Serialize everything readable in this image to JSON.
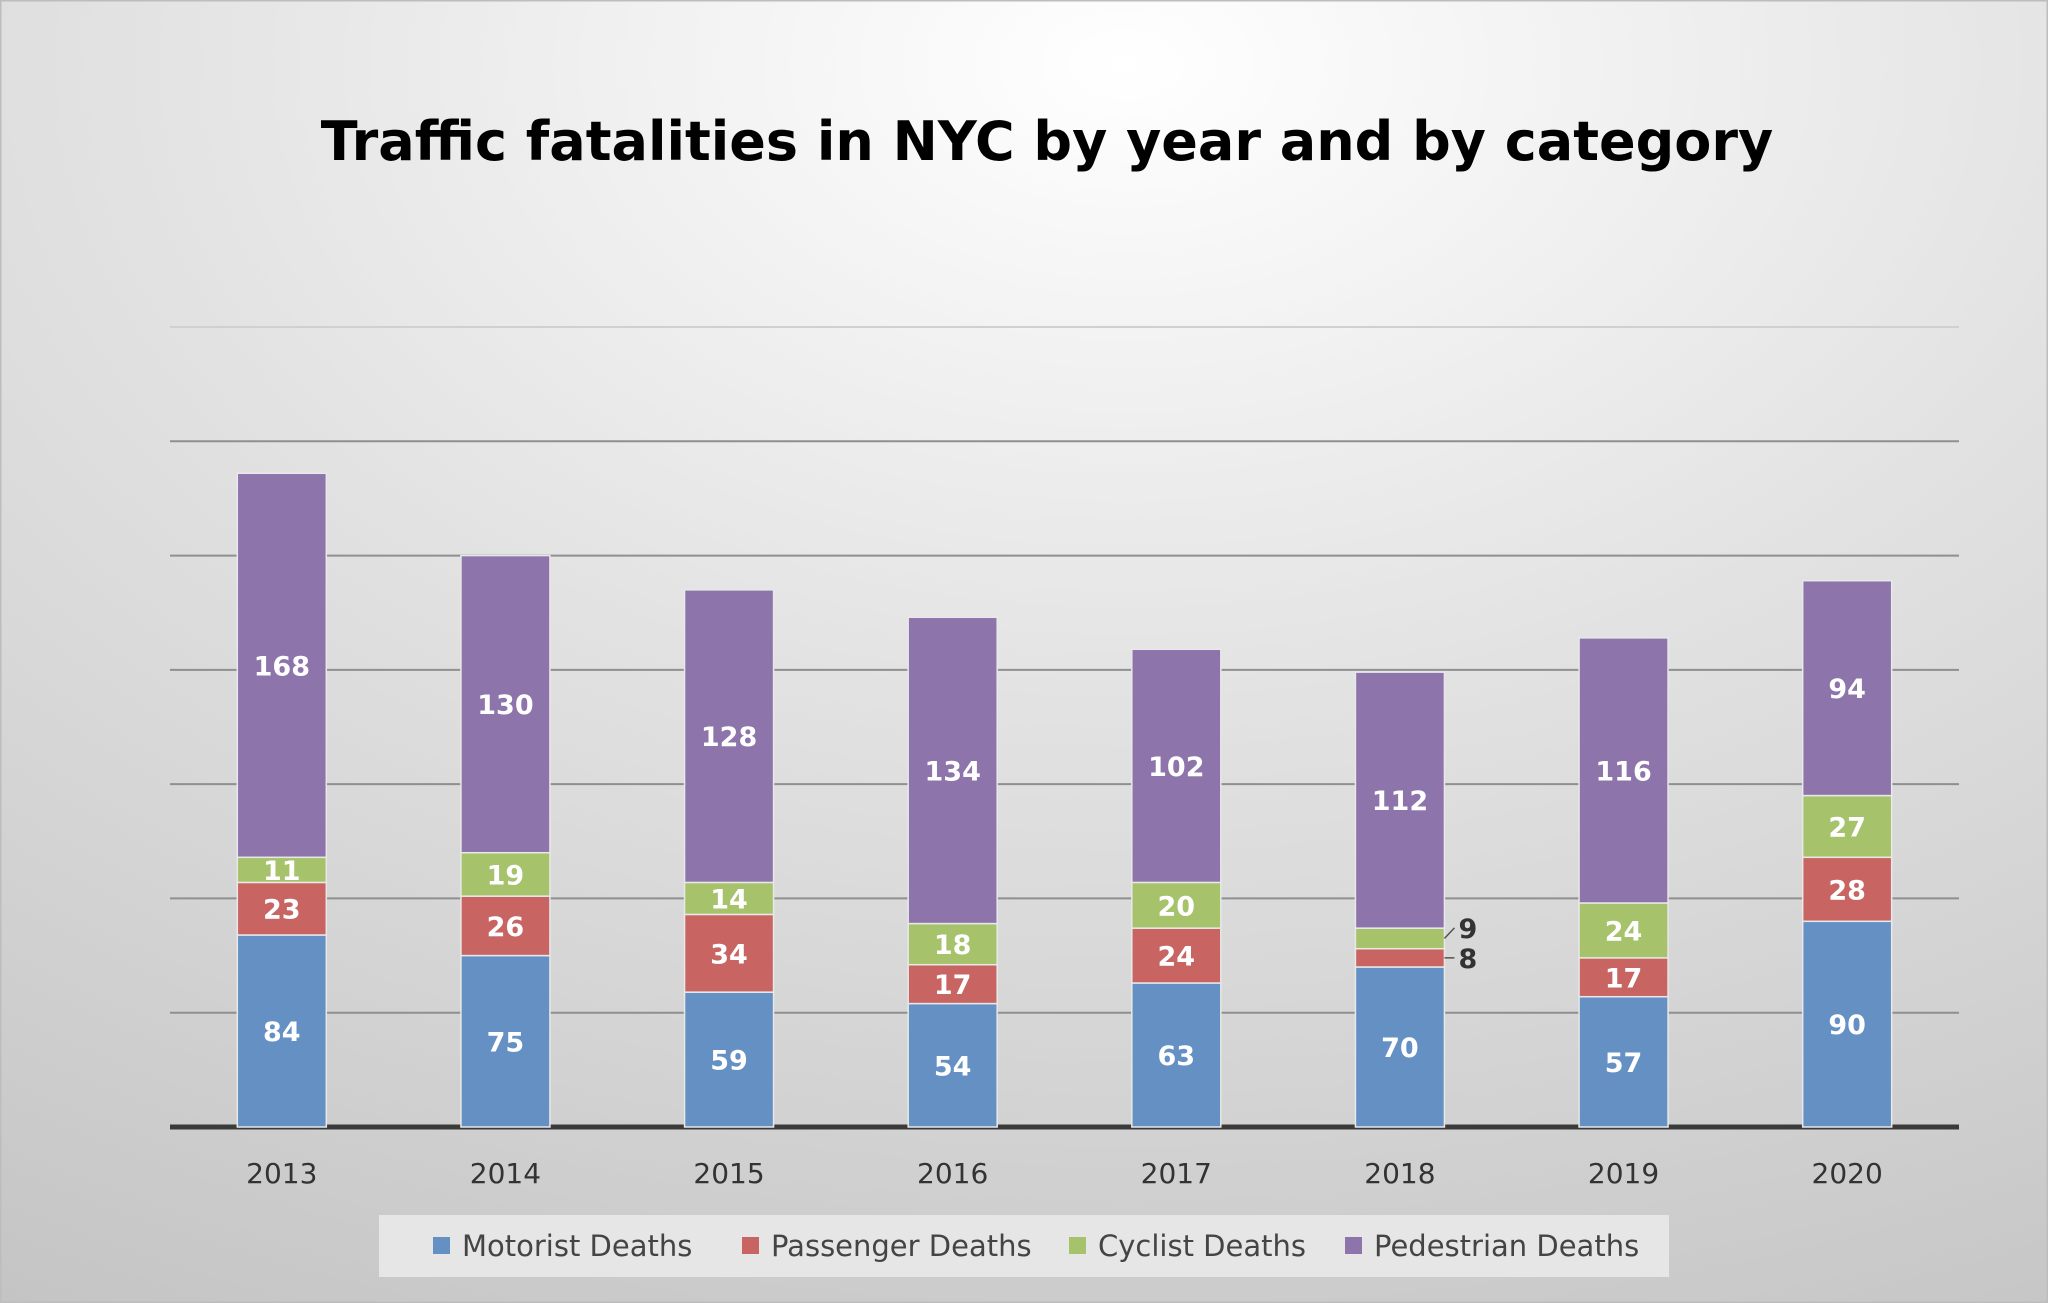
{
  "chart_data": {
    "type": "bar",
    "stacked": true,
    "title": "Traffic fatalities in NYC by year and by category",
    "xlabel": "",
    "ylabel": "",
    "ylim": [
      0,
      350
    ],
    "grid": true,
    "gridline_step": 50,
    "y_tick_labels_shown": false,
    "legend_position": "bottom",
    "categories": [
      "2013",
      "2014",
      "2015",
      "2016",
      "2017",
      "2018",
      "2019",
      "2020"
    ],
    "series": [
      {
        "name": "Motorist Deaths",
        "color": "#6590c4",
        "values": [
          84,
          75,
          59,
          54,
          63,
          70,
          57,
          90
        ]
      },
      {
        "name": "Passenger Deaths",
        "color": "#c86563",
        "values": [
          23,
          26,
          34,
          17,
          24,
          8,
          17,
          28
        ]
      },
      {
        "name": "Cyclist Deaths",
        "color": "#a6c26b",
        "values": [
          11,
          19,
          14,
          18,
          20,
          9,
          24,
          27
        ]
      },
      {
        "name": "Pedestrian Deaths",
        "color": "#8d74ab",
        "values": [
          168,
          130,
          128,
          134,
          102,
          112,
          116,
          94
        ]
      }
    ]
  }
}
